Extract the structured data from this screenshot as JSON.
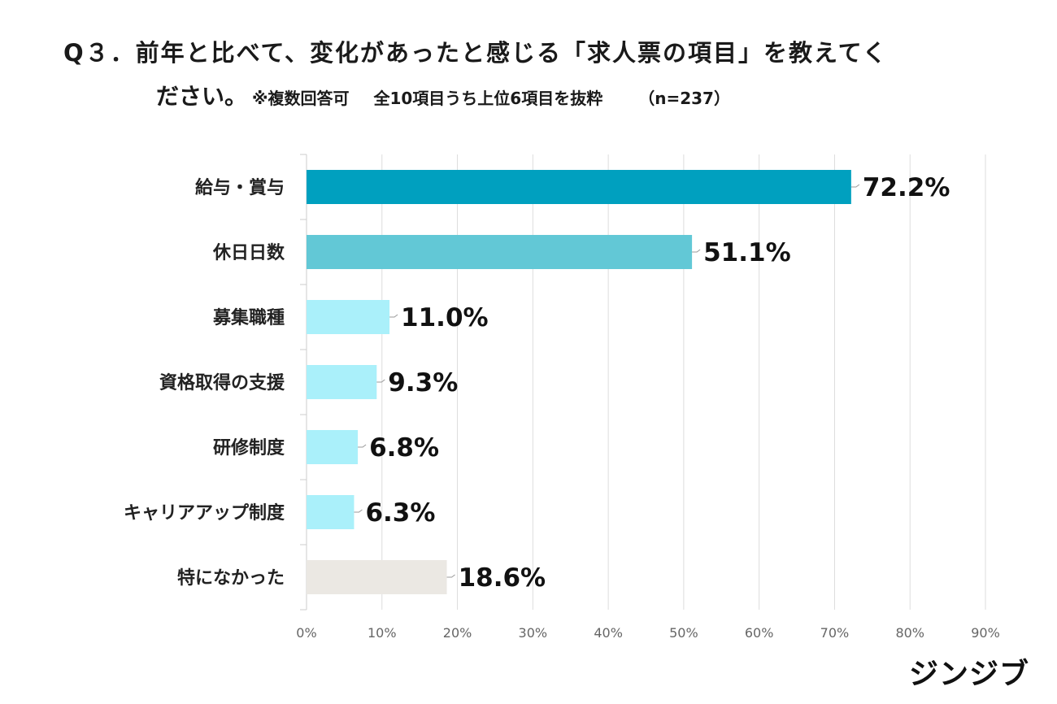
{
  "title": {
    "line1": "Q３．前年と比べて、変化があったと感じる「求人票の項目」を教えてく",
    "line2_main": "ださい。",
    "line2_note": "※複数回答可",
    "line2_sub": "全10項目うち上位6項目を抜粋",
    "line2_n": "（n=237）"
  },
  "brand": "ジンジブ",
  "chart_data": {
    "type": "bar",
    "orientation": "horizontal",
    "categories": [
      "給与・賞与",
      "休日日数",
      "募集職種",
      "資格取得の支援",
      "研修制度",
      "キャリアアップ制度",
      "特になかった"
    ],
    "values": [
      72.2,
      51.1,
      11.0,
      9.3,
      6.8,
      6.3,
      18.6
    ],
    "value_labels": [
      "72.2%",
      "51.1%",
      "11.0%",
      "9.3%",
      "6.8%",
      "6.3%",
      "18.6%"
    ],
    "bar_colors": [
      "#00a0bf",
      "#62c8d6",
      "#aaf0fa",
      "#aaf0fa",
      "#aaf0fa",
      "#aaf0fa",
      "#ebe8e3"
    ],
    "xlim": [
      0,
      90
    ],
    "xticks": [
      0,
      10,
      20,
      30,
      40,
      50,
      60,
      70,
      80,
      90
    ],
    "xtick_labels": [
      "0%",
      "10%",
      "20%",
      "30%",
      "40%",
      "50%",
      "60%",
      "70%",
      "80%",
      "90%"
    ],
    "grid": true
  }
}
